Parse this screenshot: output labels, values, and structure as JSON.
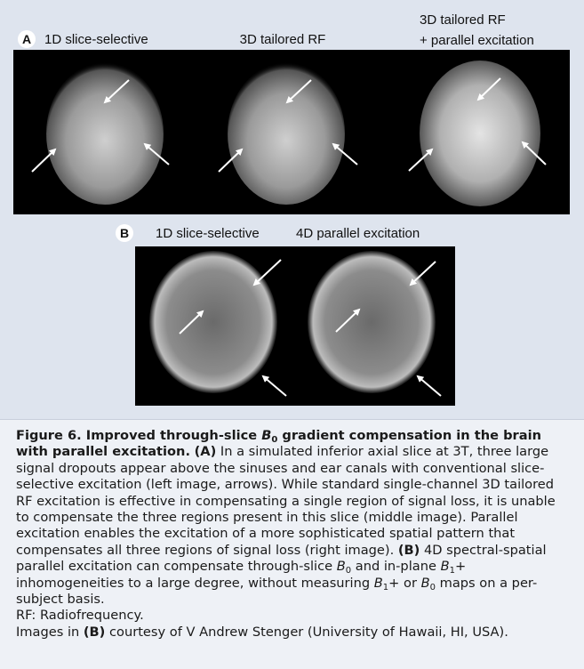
{
  "figure": {
    "panel_a": {
      "label": "A",
      "images": [
        {
          "lines": [
            "1D slice-selective"
          ]
        },
        {
          "lines": [
            "3D tailored RF"
          ]
        },
        {
          "lines": [
            "3D tailored RF",
            "+ parallel excitation"
          ]
        }
      ]
    },
    "panel_b": {
      "label": "B",
      "images": [
        {
          "lines": [
            "1D slice-selective"
          ]
        },
        {
          "lines": [
            "4D parallel excitation"
          ]
        }
      ]
    }
  },
  "caption": {
    "main": [
      "Figure 6. Improved through-slice ",
      "B",
      "0",
      " gradient compensation in the brain with parallel excitation.",
      " ",
      "(A)",
      " In a simulated inferior axial slice at 3T, three large signal dropouts appear above the sinuses and ear canals with conventional slice-selective excitation (left image, arrows). While standard single-channel 3D tailored RF excitation is effective in compensating a single region of signal loss, it is unable to compensate the three regions present in this slice (middle image). Parallel excitation enables the excitation of a more sophisticated spatial pattern that compensates all three regions of signal loss (right image). ",
      "(B)",
      " 4D spectral-spatial parallel excitation can compensate through-slice ",
      "B",
      "0",
      " and in-plane ",
      "B",
      "1",
      "+ inhomogeneities to a large degree, without measuring ",
      "B",
      "1",
      "+ or ",
      "B",
      "0",
      " maps on a per-subject basis."
    ],
    "abbreviation": "RF: Radiofrequency.",
    "credit": [
      "Images in ",
      "(B)",
      " courtesy of V Andrew Stenger (University of Hawaii, HI, USA)."
    ]
  }
}
